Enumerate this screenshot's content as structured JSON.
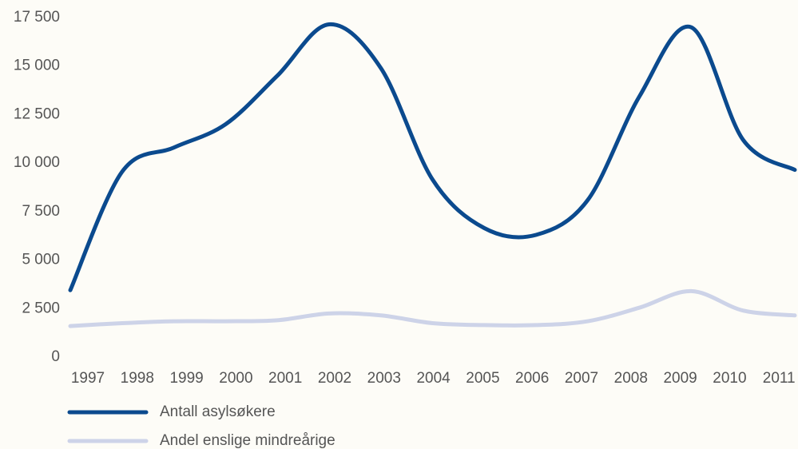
{
  "chart_data": {
    "type": "line",
    "categories": [
      "1997",
      "1998",
      "1999",
      "2000",
      "2001",
      "2002",
      "2003",
      "2004",
      "2005",
      "2006",
      "2007",
      "2008",
      "2009",
      "2010",
      "2011"
    ],
    "series": [
      {
        "name": "Antall asylsøkere",
        "color": "#0b4a8e",
        "values": [
          3450,
          9550,
          10800,
          12000,
          14500,
          17150,
          14900,
          9150,
          6650,
          6300,
          8100,
          13450,
          17000,
          11200,
          9650
        ]
      },
      {
        "name": "Andel enslige mindreårige",
        "color": "#cdd3e8",
        "values": [
          1600,
          1750,
          1850,
          1850,
          1900,
          2250,
          2150,
          1750,
          1650,
          1650,
          1850,
          2550,
          3400,
          2400,
          2150
        ]
      }
    ],
    "ylim": [
      0,
      17500
    ],
    "yticks": [
      0,
      {
        "value": 2500,
        "label": "2 500"
      },
      {
        "value": 5000,
        "label": "5 000"
      },
      {
        "value": 7500,
        "label": "7 500"
      },
      {
        "value": 10000,
        "label": "10 000"
      },
      {
        "value": 12500,
        "label": "12 500"
      },
      {
        "value": 15000,
        "label": "15 000"
      },
      {
        "value": 17500,
        "label": "17 500"
      }
    ],
    "grid": false
  }
}
